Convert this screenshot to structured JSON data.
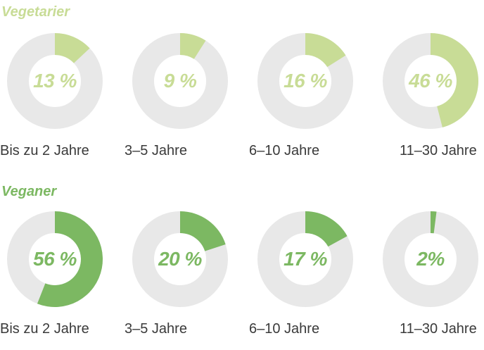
{
  "colors": {
    "vegetarian": "#c8dc96",
    "vegan": "#7cb862",
    "track": "#e8e8e8"
  },
  "chart_data": [
    {
      "type": "pie",
      "title": "Vegetarier",
      "categories": [
        "Bis zu 2 Jahre",
        "3–5 Jahre",
        "6–10 Jahre",
        "11–30 Jahre"
      ],
      "values": [
        13,
        9,
        16,
        46
      ],
      "labels": [
        "13 %",
        "9 %",
        "16 %",
        "46 %"
      ]
    },
    {
      "type": "pie",
      "title": "Veganer",
      "categories": [
        "Bis zu 2 Jahre",
        "3–5 Jahre",
        "6–10 Jahre",
        "11–30 Jahre"
      ],
      "values": [
        56,
        20,
        17,
        2
      ],
      "labels": [
        "56 %",
        "20 %",
        "17 %",
        "2%"
      ]
    }
  ]
}
